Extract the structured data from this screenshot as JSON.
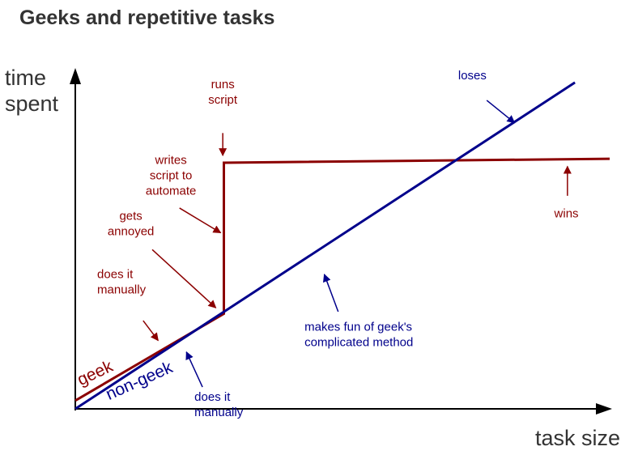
{
  "colors": {
    "geek": "#8b0000",
    "non_geek": "#00008b",
    "axis": "#000000",
    "guide": "#cccccc",
    "text": "#333333"
  },
  "chart_data": {
    "type": "line",
    "title": "Geeks and repetitive tasks",
    "xlabel": "task size",
    "ylabel": [
      "time",
      "spent"
    ],
    "xlim": [
      0,
      100
    ],
    "ylim": [
      0,
      100
    ],
    "grid": false,
    "series": [
      {
        "name": "geek",
        "color": "#8b0000",
        "x": [
          0,
          27.8,
          27.8,
          100
        ],
        "y": [
          2.5,
          28.8,
          74.5,
          75.7
        ]
      },
      {
        "name": "non-geek",
        "color": "#00008b",
        "x": [
          0,
          93.5
        ],
        "y": [
          0,
          98.8
        ]
      }
    ],
    "annotations": [
      {
        "id": "runs-script",
        "series": "geek",
        "lines": [
          "runs",
          "script"
        ],
        "color": "#8b0000",
        "anchor": "middle",
        "text_at": [
          27.6,
          97.0
        ],
        "arrow_from": [
          27.6,
          83.5
        ],
        "arrow_to": [
          27.6,
          76.7
        ]
      },
      {
        "id": "writes-script",
        "series": "geek",
        "lines": [
          "writes",
          "script to",
          "automate"
        ],
        "color": "#8b0000",
        "anchor": "middle",
        "text_at": [
          17.9,
          74.1
        ],
        "arrow_from": [
          19.5,
          60.8
        ],
        "arrow_to": [
          27.2,
          53.3
        ]
      },
      {
        "id": "gets-annoyed",
        "series": "geek",
        "lines": [
          "gets",
          "annoyed"
        ],
        "color": "#8b0000",
        "anchor": "middle",
        "text_at": [
          10.4,
          57.2
        ],
        "arrow_from": [
          14.4,
          48.2
        ],
        "arrow_to": [
          26.3,
          30.6
        ]
      },
      {
        "id": "geek-does-manually",
        "series": "geek",
        "lines": [
          "does it",
          "manually"
        ],
        "color": "#8b0000",
        "anchor": "start",
        "text_at": [
          4.1,
          39.6
        ],
        "arrow_from": [
          12.7,
          26.7
        ],
        "arrow_to": [
          15.5,
          20.7
        ]
      },
      {
        "id": "loses",
        "series": "non-geek",
        "lines": [
          "loses"
        ],
        "color": "#00008b",
        "anchor": "middle",
        "text_at": [
          74.3,
          99.8
        ],
        "arrow_from": [
          77.0,
          93.4
        ],
        "arrow_to": [
          82.2,
          86.6
        ]
      },
      {
        "id": "wins",
        "series": "geek",
        "lines": [
          "wins"
        ],
        "color": "#8b0000",
        "anchor": "middle",
        "text_at": [
          91.9,
          58.0
        ],
        "arrow_from": [
          92.1,
          64.5
        ],
        "arrow_to": [
          92.1,
          73.4
        ]
      },
      {
        "id": "makes-fun",
        "series": "non-geek",
        "lines": [
          "makes fun of geek's",
          "complicated method"
        ],
        "color": "#00008b",
        "anchor": "start",
        "text_at": [
          42.9,
          23.6
        ],
        "arrow_from": [
          49.2,
          29.4
        ],
        "arrow_to": [
          46.6,
          40.7
        ]
      },
      {
        "id": "non-geek-does-manually",
        "series": "non-geek",
        "lines": [
          "does it",
          "manually"
        ],
        "color": "#00008b",
        "anchor": "start",
        "text_at": [
          22.3,
          2.5
        ],
        "arrow_from": [
          23.8,
          6.6
        ],
        "arrow_to": [
          20.8,
          17.2
        ]
      }
    ],
    "series_labels": [
      {
        "text": "geek",
        "series": "geek",
        "color": "#8b0000",
        "at": [
          1.0,
          7.0
        ],
        "rotate_deg": -25
      },
      {
        "text": "non-geek",
        "series": "non-geek",
        "color": "#00008b",
        "at": [
          6.3,
          2.6
        ],
        "rotate_deg": -24
      }
    ]
  }
}
